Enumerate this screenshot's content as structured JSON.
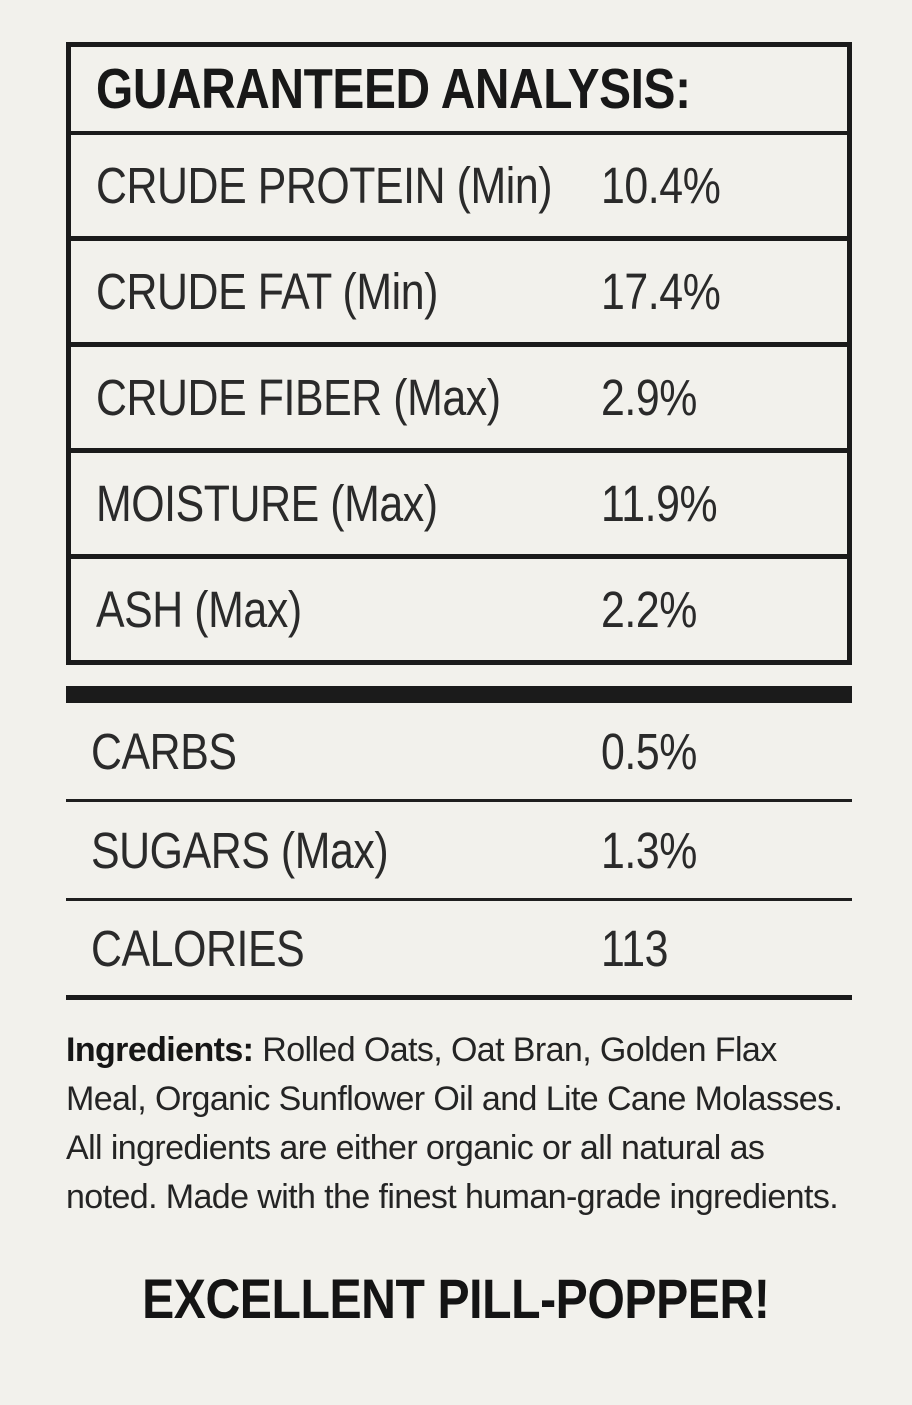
{
  "page": {
    "background_color": "#f2f1ec",
    "text_color": "#1e1e1e",
    "line_color": "#1b1b1b"
  },
  "analysis_table": {
    "title": "GUARANTEED ANALYSIS:",
    "rows": [
      {
        "label": "CRUDE PROTEIN (Min)",
        "value": "10.4%"
      },
      {
        "label": "CRUDE FAT (Min)",
        "value": "17.4%"
      },
      {
        "label": "CRUDE FIBER (Max)",
        "value": "2.9%"
      },
      {
        "label": "MOISTURE (Max)",
        "value": "11.9%"
      },
      {
        "label": "ASH (Max)",
        "value": "2.2%"
      }
    ]
  },
  "supplemental_rows": [
    {
      "label": "CARBS",
      "value": "0.5%"
    },
    {
      "label": "SUGARS (Max)",
      "value": "1.3%"
    },
    {
      "label": "CALORIES",
      "value": "113"
    }
  ],
  "ingredients": {
    "lead": "Ingredients:",
    "text": "Rolled Oats, Oat Bran, Golden Flax Meal, Organic Sunflower Oil and Lite Cane Molasses. All ingredients are either organic or all natural as noted. Made with the finest human-grade ingredients."
  },
  "footer": {
    "tagline": "EXCELLENT PILL-POPPER!"
  }
}
